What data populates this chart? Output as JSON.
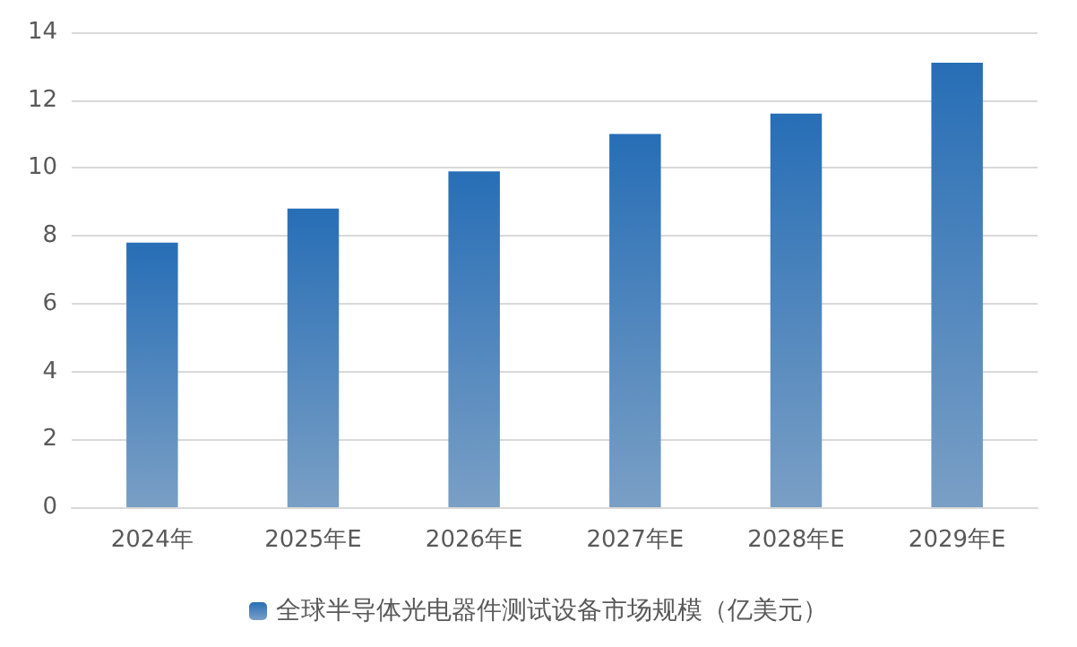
{
  "chart_data": {
    "type": "bar",
    "categories": [
      "2024年",
      "2025年E",
      "2026年E",
      "2027年E",
      "2028年E",
      "2029年E"
    ],
    "series": [
      {
        "name": "全球半导体光电器件测试设备市场规模（亿美元）",
        "color": "#22609f",
        "values": [
          7.8,
          8.8,
          9.9,
          11.0,
          11.6,
          13.1
        ]
      }
    ],
    "ylim": [
      0,
      14
    ],
    "yticks": [
      0,
      2,
      4,
      6,
      8,
      10,
      12,
      14
    ],
    "grid": "y",
    "legend": "bottom"
  }
}
